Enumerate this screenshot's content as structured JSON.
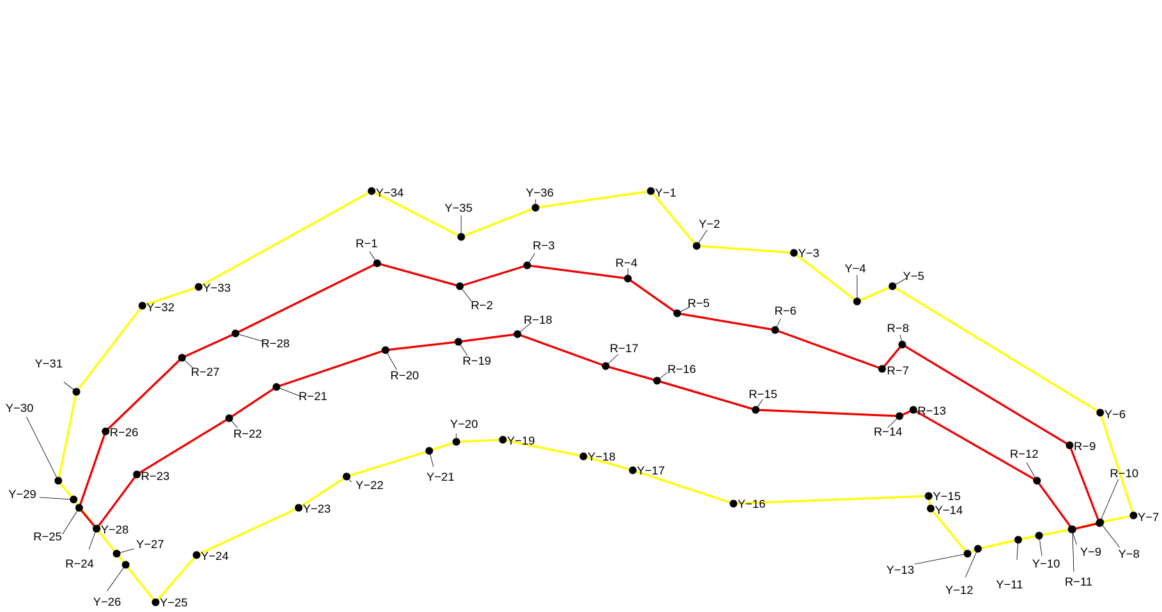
{
  "diagram": {
    "colors": {
      "yellow_line": "#ffff00",
      "red_line": "#ee0000",
      "point": "#000000",
      "leader": "#000000",
      "label": "#000000"
    },
    "yellow": {
      "points": [
        {
          "id": "Y-1",
          "label": "Y−1"
        },
        {
          "id": "Y-2",
          "label": "Y−2"
        },
        {
          "id": "Y-3",
          "label": "Y−3"
        },
        {
          "id": "Y-4",
          "label": "Y−4"
        },
        {
          "id": "Y-5",
          "label": "Y−5"
        },
        {
          "id": "Y-6",
          "label": "Y−6"
        },
        {
          "id": "Y-7",
          "label": "Y−7"
        },
        {
          "id": "Y-8",
          "label": "Y−8"
        },
        {
          "id": "Y-9",
          "label": "Y−9"
        },
        {
          "id": "Y-10",
          "label": "Y−10"
        },
        {
          "id": "Y-11",
          "label": "Y−11"
        },
        {
          "id": "Y-12",
          "label": "Y−12"
        },
        {
          "id": "Y-13",
          "label": "Y−13"
        },
        {
          "id": "Y-14",
          "label": "Y−14"
        },
        {
          "id": "Y-15",
          "label": "Y−15"
        },
        {
          "id": "Y-16",
          "label": "Y−16"
        },
        {
          "id": "Y-17",
          "label": "Y−17"
        },
        {
          "id": "Y-18",
          "label": "Y−18"
        },
        {
          "id": "Y-19",
          "label": "Y−19"
        },
        {
          "id": "Y-20",
          "label": "Y−20"
        },
        {
          "id": "Y-21",
          "label": "Y−21"
        },
        {
          "id": "Y-22",
          "label": "Y−22"
        },
        {
          "id": "Y-23",
          "label": "Y−23"
        },
        {
          "id": "Y-24",
          "label": "Y−24"
        },
        {
          "id": "Y-25",
          "label": "Y−25"
        },
        {
          "id": "Y-26",
          "label": "Y−26"
        },
        {
          "id": "Y-27",
          "label": "Y−27"
        },
        {
          "id": "Y-28",
          "label": "Y−28"
        },
        {
          "id": "Y-29",
          "label": "Y−29"
        },
        {
          "id": "Y-30",
          "label": "Y−30"
        },
        {
          "id": "Y-31",
          "label": "Y−31"
        },
        {
          "id": "Y-32",
          "label": "Y−32"
        },
        {
          "id": "Y-33",
          "label": "Y−33"
        },
        {
          "id": "Y-34",
          "label": "Y−34"
        },
        {
          "id": "Y-35",
          "label": "Y−35"
        },
        {
          "id": "Y-36",
          "label": "Y−36"
        }
      ]
    },
    "red": {
      "points": [
        {
          "id": "R-1",
          "label": "R−1"
        },
        {
          "id": "R-2",
          "label": "R−2"
        },
        {
          "id": "R-3",
          "label": "R−3"
        },
        {
          "id": "R-4",
          "label": "R−4"
        },
        {
          "id": "R-5",
          "label": "R−5"
        },
        {
          "id": "R-6",
          "label": "R−6"
        },
        {
          "id": "R-7",
          "label": "R−7"
        },
        {
          "id": "R-8",
          "label": "R−8"
        },
        {
          "id": "R-9",
          "label": "R−9"
        },
        {
          "id": "R-10",
          "label": "R−10"
        },
        {
          "id": "R-11",
          "label": "R−11"
        },
        {
          "id": "R-12",
          "label": "R−12"
        },
        {
          "id": "R-13",
          "label": "R−13"
        },
        {
          "id": "R-14",
          "label": "R−14"
        },
        {
          "id": "R-15",
          "label": "R−15"
        },
        {
          "id": "R-16",
          "label": "R−16"
        },
        {
          "id": "R-17",
          "label": "R−17"
        },
        {
          "id": "R-18",
          "label": "R−18"
        },
        {
          "id": "R-19",
          "label": "R−19"
        },
        {
          "id": "R-20",
          "label": "R−20"
        },
        {
          "id": "R-21",
          "label": "R−21"
        },
        {
          "id": "R-22",
          "label": "R−22"
        },
        {
          "id": "R-23",
          "label": "R−23"
        },
        {
          "id": "R-24",
          "label": "R−24"
        },
        {
          "id": "R-25",
          "label": "R−25"
        },
        {
          "id": "R-26",
          "label": "R−26"
        },
        {
          "id": "R-27",
          "label": "R−27"
        },
        {
          "id": "R-28",
          "label": "R−28"
        }
      ]
    }
  }
}
